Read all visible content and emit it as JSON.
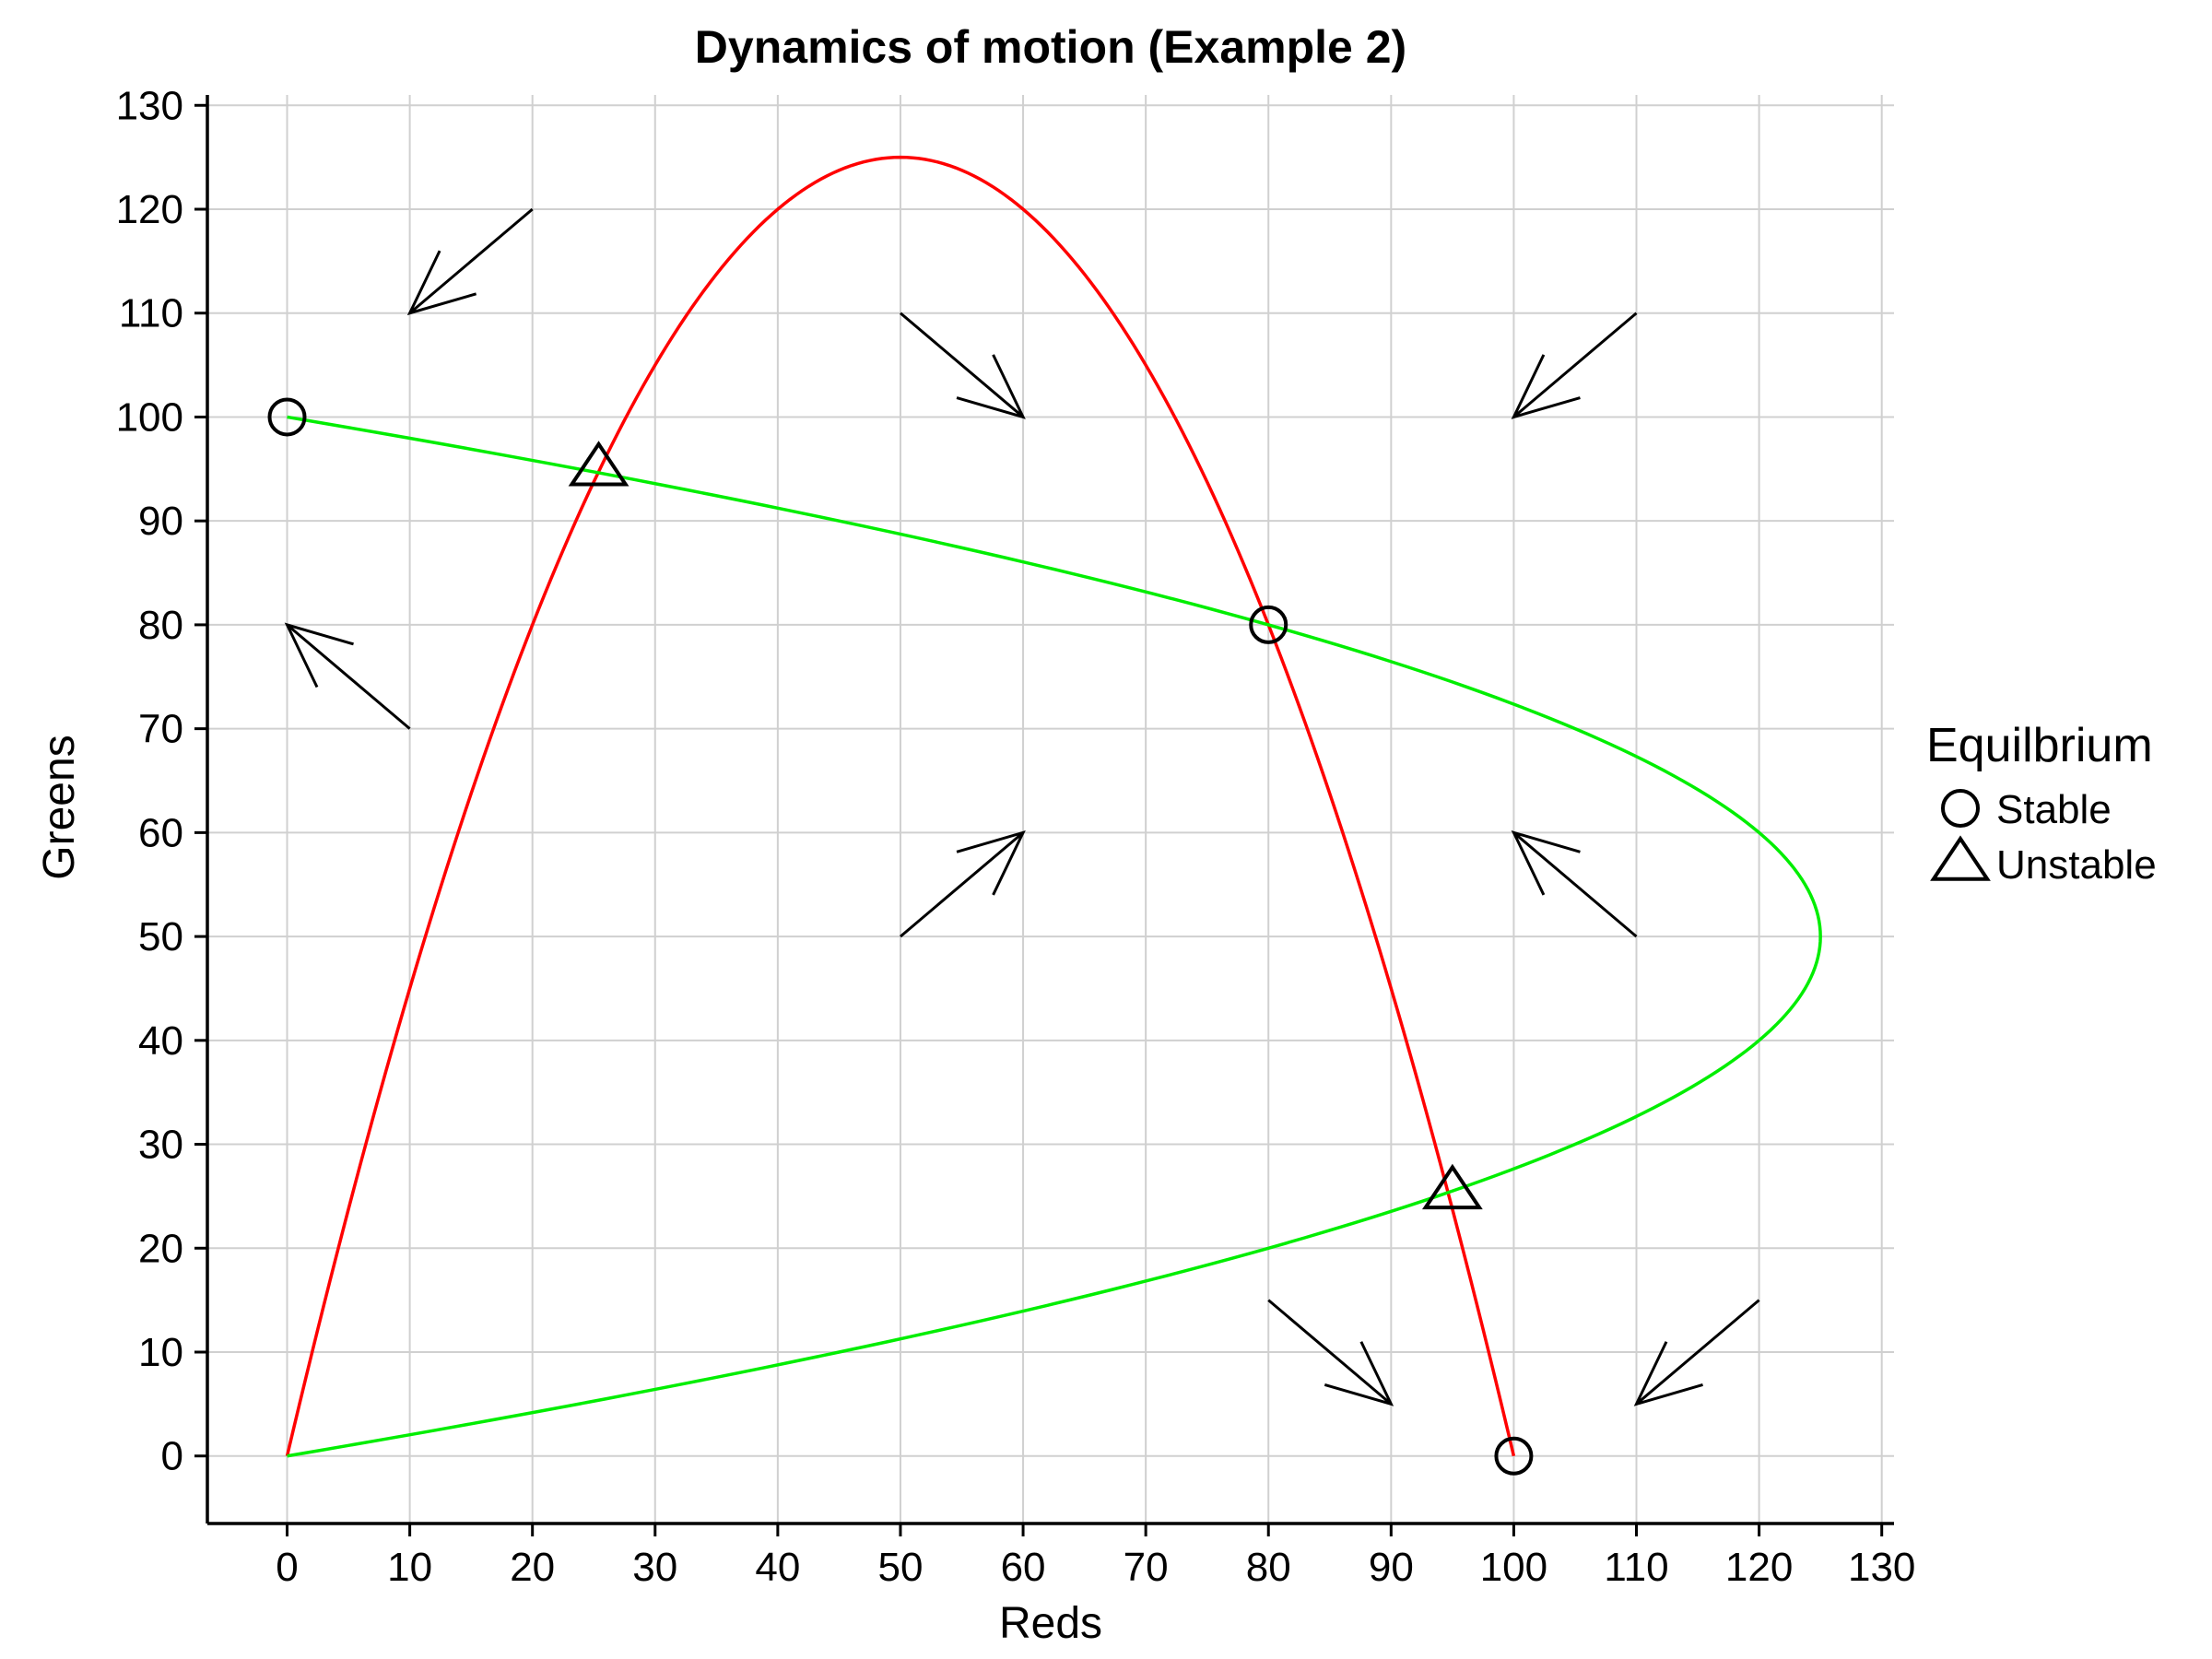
{
  "chart_data": {
    "type": "line",
    "title": "Dynamics of motion (Example 2)",
    "xlabel": "Reds",
    "ylabel": "Greens",
    "xlim": [
      -6.5,
      131
    ],
    "ylim": [
      -6.5,
      131
    ],
    "xticks": [
      0,
      10,
      20,
      30,
      40,
      50,
      60,
      70,
      80,
      90,
      100,
      110,
      120,
      130
    ],
    "yticks": [
      0,
      10,
      20,
      30,
      40,
      50,
      60,
      70,
      80,
      90,
      100,
      110,
      120,
      130
    ],
    "grid": true,
    "series": [
      {
        "color": "#ff0000",
        "x": [
          0,
          5,
          10,
          15,
          20,
          25,
          30,
          35,
          40,
          45,
          50,
          55,
          60,
          65,
          70,
          75,
          80,
          85,
          90,
          95,
          100
        ],
        "y": [
          0,
          23.75,
          45,
          63.75,
          80,
          93.75,
          105,
          113.75,
          120,
          123.75,
          125,
          123.75,
          120,
          113.75,
          105,
          93.75,
          80,
          63.75,
          45,
          23.75,
          0
        ]
      },
      {
        "color": "#00ee00",
        "x": [
          0,
          23.75,
          45,
          63.75,
          80,
          93.75,
          105,
          113.75,
          120,
          123.75,
          125,
          123.75,
          120,
          113.75,
          105,
          93.75,
          80,
          63.75,
          45,
          23.75,
          0
        ],
        "y": [
          0,
          5,
          10,
          15,
          20,
          25,
          30,
          35,
          40,
          45,
          50,
          55,
          60,
          65,
          70,
          75,
          80,
          85,
          90,
          95,
          100
        ]
      }
    ],
    "equilibria": [
      {
        "type": "stable",
        "x": 0,
        "y": 100
      },
      {
        "type": "stable",
        "x": 80,
        "y": 80
      },
      {
        "type": "stable",
        "x": 100,
        "y": 0
      },
      {
        "type": "unstable",
        "x": 25.4,
        "y": 95
      },
      {
        "type": "unstable",
        "x": 95,
        "y": 25.4
      }
    ],
    "direction_arrows": [
      {
        "from": [
          20,
          120
        ],
        "to": [
          10,
          110
        ]
      },
      {
        "from": [
          50,
          110
        ],
        "to": [
          60,
          100
        ]
      },
      {
        "from": [
          110,
          110
        ],
        "to": [
          100,
          100
        ]
      },
      {
        "from": [
          10,
          70
        ],
        "to": [
          0,
          80
        ]
      },
      {
        "from": [
          50,
          50
        ],
        "to": [
          60,
          60
        ]
      },
      {
        "from": [
          110,
          50
        ],
        "to": [
          100,
          60
        ]
      },
      {
        "from": [
          80,
          15
        ],
        "to": [
          90,
          5
        ]
      },
      {
        "from": [
          120,
          15
        ],
        "to": [
          110,
          5
        ]
      }
    ],
    "legend": {
      "title": "Equilbrium",
      "position": "right",
      "entries": [
        {
          "label": "Stable",
          "marker": "circle"
        },
        {
          "label": "Unstable",
          "marker": "triangle"
        }
      ]
    }
  }
}
